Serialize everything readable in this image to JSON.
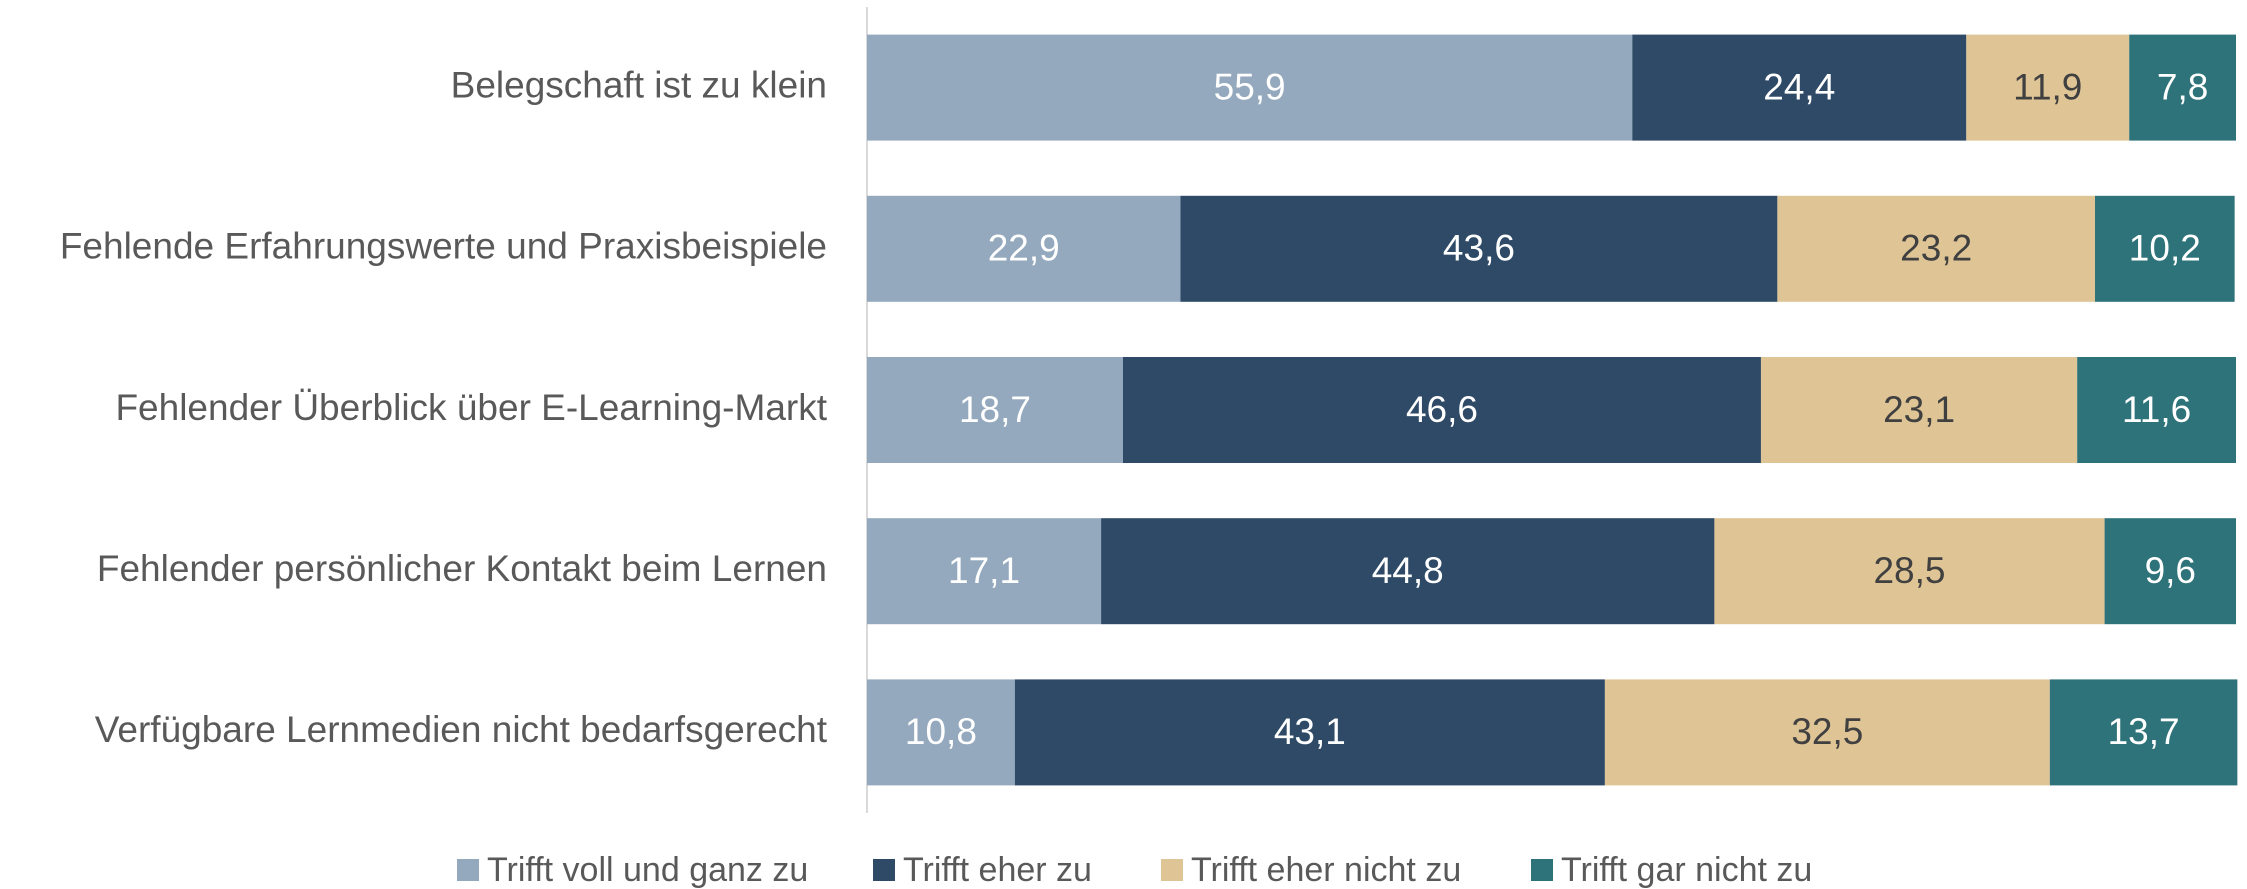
{
  "chart_data": {
    "type": "stacked_barh",
    "categories": [
      "Belegschaft ist zu klein",
      "Fehlende Erfahrungswerte und Praxisbeispiele",
      "Fehlender Überblick über E-Learning-Markt",
      "Fehlender persönlicher Kontakt beim Lernen",
      "Verfügbare Lernmedien nicht bedarfsgerecht"
    ],
    "series": [
      {
        "name": "Trifft voll und ganz zu",
        "color": "#94a9bd",
        "values": [
          55.9,
          22.9,
          18.7,
          17.1,
          10.8
        ],
        "value_labels": [
          "55,9",
          "22,9",
          "18,7",
          "17,1",
          "10,8"
        ]
      },
      {
        "name": "Trifft eher zu",
        "color": "#2e4a66",
        "values": [
          24.4,
          43.6,
          46.6,
          44.8,
          43.1
        ],
        "value_labels": [
          "24,4",
          "43,6",
          "46,6",
          "44,8",
          "43,1"
        ]
      },
      {
        "name": "Trifft eher nicht zu",
        "color": "#dfc596",
        "values": [
          11.9,
          23.2,
          23.1,
          28.5,
          32.5
        ],
        "value_labels": [
          "11,9",
          "23,2",
          "23,1",
          "28,5",
          "32,5"
        ]
      },
      {
        "name": "Trifft gar nicht zu",
        "color": "#2e737a",
        "values": [
          7.8,
          10.2,
          11.6,
          9.6,
          13.7
        ],
        "value_labels": [
          "7,8",
          "10,2",
          "11,6",
          "9,6",
          "13,7"
        ]
      }
    ],
    "xlim": [
      0,
      100
    ],
    "legend": "bottom"
  }
}
